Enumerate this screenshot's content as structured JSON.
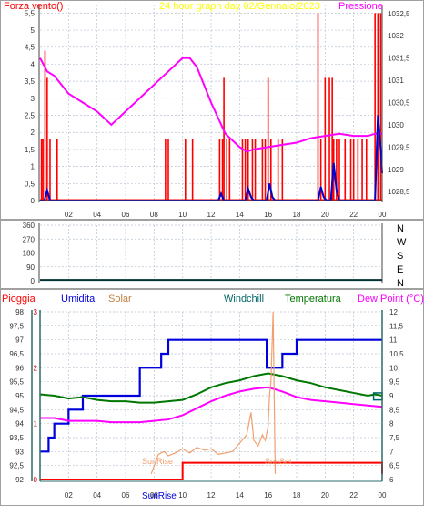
{
  "colors": {
    "background": "#ffffff",
    "grid": "#b8c4d4",
    "wind_line": "#ff0000",
    "wind_gust_blue": "#0000cc",
    "pressure": "#ff00ff",
    "baseline_axis": "#003333",
    "title": "#ffff00",
    "rain": "#ff0000",
    "humidity": "#0000dd",
    "solar": "#f0a070",
    "windchill": "#006666",
    "temperature": "#007700",
    "dewpoint": "#ff00ff",
    "panel_axis": "#2e6b6b"
  },
  "top_panel": {
    "title": "24 hour graph day 02/Gennaio/2023",
    "left_label": "Forza vento()",
    "right_label": "Pressione",
    "left_ticks": [
      "5,5",
      "5",
      "4,5",
      "4",
      "3,5",
      "3",
      "2,5",
      "2",
      "1,5",
      "1",
      "0,5",
      "0"
    ],
    "right_ticks": [
      "1032,5",
      "1032",
      "1031,5",
      "1031",
      "1030,5",
      "1030",
      "1029,5",
      "1029",
      "1028,5"
    ],
    "x_ticks": [
      "02",
      "04",
      "06",
      "08",
      "10",
      "12",
      "14",
      "16",
      "18",
      "20",
      "22",
      "00"
    ]
  },
  "mid_panel": {
    "left_ticks": [
      "360",
      "270",
      "180",
      "90",
      "0"
    ],
    "right_labels": [
      "N",
      "W",
      "S",
      "E",
      "N"
    ]
  },
  "bottom_panel": {
    "legend": {
      "rain": "Pioggia",
      "humidity": "Umidita",
      "solar": "Solar",
      "windchill": "Windchill",
      "temperature": "Temperatura",
      "dewpoint": "Dew Point (°C)"
    },
    "humidity_ticks": [
      "98",
      "97,5",
      "97",
      "96,5",
      "96",
      "95,5",
      "95",
      "94,5",
      "94",
      "93,5",
      "93",
      "92,5",
      "92"
    ],
    "rain_ticks": [
      "3",
      "2",
      "1",
      "0"
    ],
    "temp_ticks": [
      "12",
      "11,5",
      "11",
      "10,5",
      "10",
      "9,5",
      "9",
      "8,5",
      "8",
      "7,5",
      "7",
      "6,5",
      "6"
    ],
    "x_ticks": [
      "02",
      "04",
      "06",
      "08",
      "10",
      "12",
      "14",
      "16",
      "18",
      "20",
      "22",
      "00"
    ],
    "sunrise_label": "SunRise",
    "sunset_label": "SunSet",
    "footer_label": "SunRise"
  },
  "chart_data": [
    {
      "type": "line",
      "title": "24 hour graph day 02/Gennaio/2023",
      "xlabel": "",
      "ylabel": "Forza vento()",
      "y2label": "Pressione",
      "xlim": [
        0,
        24
      ],
      "ylim": [
        0,
        5.75
      ],
      "y2lim": [
        1028.3,
        1032.7
      ],
      "series": [
        {
          "axis": "y2",
          "color": "#ff00ff",
          "x": [
            0,
            0.5,
            1,
            2,
            3,
            4,
            5,
            6,
            7,
            8,
            9,
            10,
            10.5,
            11,
            12,
            13,
            14,
            14.5,
            15,
            16,
            17,
            18,
            19,
            20,
            21,
            22,
            23,
            23.5,
            24
          ],
          "values": [
            1031.5,
            1031.2,
            1031.1,
            1030.7,
            1030.5,
            1030.3,
            1030.0,
            1030.3,
            1030.6,
            1030.9,
            1031.2,
            1031.5,
            1031.5,
            1031.3,
            1030.5,
            1029.8,
            1029.5,
            1029.4,
            1029.45,
            1029.5,
            1029.55,
            1029.6,
            1029.7,
            1029.75,
            1029.8,
            1029.75,
            1029.75,
            1029.8,
            1029.8
          ]
        },
        {
          "axis": "y",
          "color": "#0000cc",
          "x": [
            0,
            0.3,
            0.5,
            0.7,
            1,
            12.5,
            12.7,
            12.9,
            13.1,
            14.4,
            14.6,
            14.8,
            15,
            15.9,
            16.1,
            16.3,
            16.5,
            19.5,
            19.7,
            19.9,
            20.1,
            20.4,
            20.6,
            20.8,
            21,
            23.5,
            23.7,
            23.9,
            24
          ],
          "values": [
            0,
            0,
            0.3,
            0,
            0,
            0,
            0.2,
            0,
            0,
            0,
            0.35,
            0.1,
            0,
            0,
            0.5,
            0.1,
            0,
            0,
            0.4,
            0.1,
            0,
            0,
            1.1,
            0.3,
            0,
            0,
            2.5,
            1.5,
            0.8
          ]
        }
      ],
      "wind_bars": {
        "color": "#ff0000",
        "x": [
          0.1,
          0.2,
          0.35,
          0.5,
          0.7,
          1.2,
          8.8,
          9.0,
          10.2,
          10.7,
          12.6,
          12.8,
          12.9,
          13.1,
          13.3,
          14.2,
          14.4,
          14.6,
          14.9,
          15.1,
          15.6,
          15.8,
          16.0,
          16.2,
          16.7,
          17.0,
          19.5,
          19.7,
          20.0,
          20.3,
          20.5,
          20.6,
          20.8,
          21.0,
          21.4,
          21.8,
          22.0,
          22.3,
          22.6,
          22.9,
          23.5,
          23.7,
          23.9
        ],
        "values": [
          1.8,
          1.8,
          4.4,
          3.6,
          1.8,
          1.8,
          1.8,
          1.8,
          1.8,
          1.8,
          1.8,
          1.8,
          3.6,
          1.8,
          1.8,
          1.8,
          1.8,
          1.8,
          1.8,
          1.8,
          1.8,
          1.8,
          3.6,
          1.8,
          1.8,
          1.8,
          5.5,
          1.8,
          3.6,
          3.6,
          3.6,
          1.8,
          1.8,
          1.8,
          1.8,
          1.8,
          1.8,
          1.8,
          1.8,
          1.8,
          5.5,
          5.5,
          5.5
        ]
      }
    },
    {
      "type": "line",
      "title": "",
      "ylim": [
        0,
        360
      ],
      "series": [
        {
          "color": "#003333",
          "x": [
            0,
            24
          ],
          "values": [
            5,
            5
          ]
        }
      ]
    },
    {
      "type": "line",
      "title": "",
      "xlim": [
        0,
        24
      ],
      "ylim_humidity": [
        92,
        98
      ],
      "ylim_rain": [
        0,
        3
      ],
      "ylim_temp": [
        6,
        12
      ],
      "series": [
        {
          "name": "Umidita",
          "axis": "humidity",
          "step": true,
          "color": "#0000dd",
          "x": [
            0,
            0.3,
            0.6,
            1.0,
            1.5,
            2.0,
            2.5,
            3.0,
            6.5,
            7.0,
            7.5,
            8.5,
            9.0,
            10.0,
            15.9,
            16.1,
            17.0,
            18.0,
            24
          ],
          "values": [
            93,
            93,
            93.5,
            94,
            94,
            94.5,
            94.5,
            95,
            95,
            96,
            96,
            96.5,
            97,
            97,
            96,
            96,
            96.5,
            97,
            97
          ]
        },
        {
          "name": "Temperatura",
          "axis": "temp",
          "color": "#007700",
          "x": [
            0,
            1,
            2,
            3,
            4,
            5,
            6,
            7,
            8,
            9,
            10,
            11,
            12,
            13,
            14,
            15,
            16,
            17,
            18,
            19,
            20,
            21,
            22,
            23,
            23.5,
            24
          ],
          "values": [
            9.05,
            9.0,
            8.9,
            8.95,
            8.85,
            8.8,
            8.8,
            8.75,
            8.75,
            8.8,
            8.85,
            9.05,
            9.3,
            9.45,
            9.55,
            9.7,
            9.8,
            9.7,
            9.55,
            9.45,
            9.3,
            9.2,
            9.1,
            9.0,
            9.05,
            9.0
          ]
        },
        {
          "name": "Dew Point (°C)",
          "axis": "temp",
          "color": "#ff00ff",
          "x": [
            0,
            1,
            2,
            3,
            4,
            5,
            6,
            7,
            8,
            9,
            10,
            11,
            12,
            13,
            14,
            15,
            16,
            17,
            18,
            19,
            20,
            21,
            22,
            23,
            24
          ],
          "values": [
            8.2,
            8.2,
            8.1,
            8.1,
            8.1,
            8.05,
            8.05,
            8.05,
            8.1,
            8.15,
            8.3,
            8.55,
            8.8,
            9.0,
            9.15,
            9.25,
            9.3,
            9.15,
            8.95,
            8.85,
            8.8,
            8.75,
            8.7,
            8.65,
            8.6
          ]
        },
        {
          "name": "Solar",
          "axis": "temp",
          "color": "#f0a070",
          "x": [
            7.8,
            8.3,
            8.7,
            9.0,
            9.5,
            10,
            10.5,
            11,
            11.5,
            12,
            12.5,
            13,
            13.5,
            14,
            14.5,
            14.8,
            15,
            15.3,
            15.6,
            15.8,
            16,
            16.1,
            16.2,
            16.35,
            16.5
          ],
          "values": [
            6.2,
            6.9,
            7.0,
            6.85,
            6.95,
            7.1,
            6.95,
            7.15,
            7.05,
            7.1,
            6.9,
            6.95,
            7.0,
            7.3,
            7.6,
            8.4,
            7.4,
            7.2,
            7.6,
            7.4,
            7.9,
            9.0,
            9.5,
            12.0,
            6.2
          ]
        },
        {
          "name": "Pioggia",
          "axis": "rain",
          "step": true,
          "color": "#ff0000",
          "x": [
            0,
            9.2,
            9.6,
            9.8,
            10.0,
            23.5,
            24
          ],
          "values": [
            0,
            0,
            0,
            0,
            0.3,
            0.3,
            0.1
          ]
        }
      ],
      "annotations": [
        "SunRise",
        "SunSet"
      ]
    }
  ]
}
